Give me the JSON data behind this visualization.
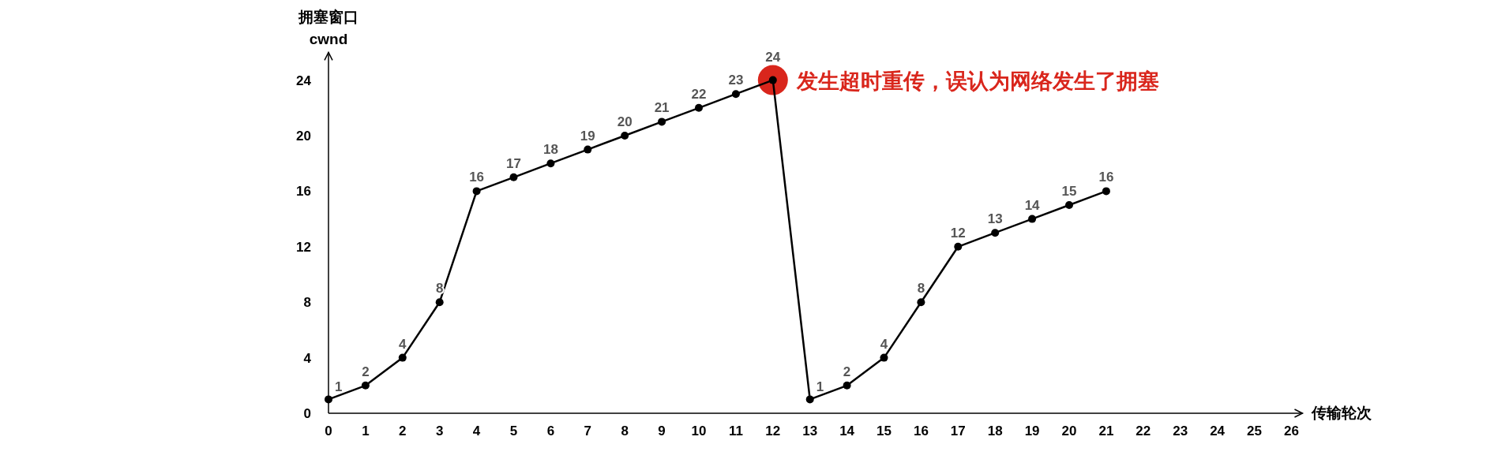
{
  "chart_data": {
    "type": "line",
    "ylabel": "拥塞窗口\ncwnd",
    "xlabel": "传输轮次",
    "x": [
      0,
      1,
      2,
      3,
      4,
      5,
      6,
      7,
      8,
      9,
      10,
      11,
      12,
      13,
      14,
      15,
      16,
      17,
      18,
      19,
      20,
      21
    ],
    "series": [
      {
        "color": "#000000",
        "values": [
          1,
          2,
          4,
          8,
          16,
          17,
          18,
          19,
          20,
          21,
          22,
          23,
          24,
          1,
          2,
          4,
          8,
          12,
          13,
          14,
          15,
          16
        ]
      }
    ],
    "xlim": [
      0,
      26.3
    ],
    "xticks": [
      0,
      1,
      2,
      3,
      4,
      5,
      6,
      7,
      8,
      9,
      10,
      11,
      12,
      13,
      14,
      15,
      16,
      17,
      18,
      19,
      20,
      21,
      22,
      23,
      24,
      25,
      26
    ],
    "ylim": [
      0,
      26
    ],
    "yticks": [
      0,
      4,
      8,
      12,
      16,
      20,
      24
    ],
    "marker": "circle",
    "data_labels": true,
    "grid": false,
    "annotations": [
      {
        "text": "发生超时重传，误认为网络发生了拥塞",
        "x": 12,
        "y": 24
      }
    ]
  }
}
